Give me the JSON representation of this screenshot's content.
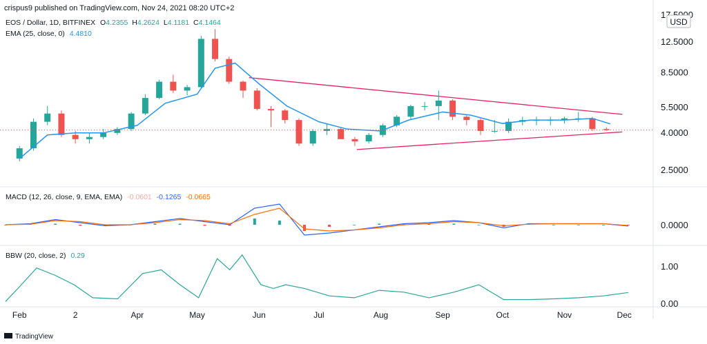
{
  "header": {
    "credit": "crispus9 published on TradingView.com, Nov 24, 2021 08:20 UTC+2",
    "symbol": "EOS / Dollar, 1D, BITFINEX",
    "o_label": "O",
    "o_value": "4.2355",
    "h_label": "H",
    "h_value": "4.2624",
    "l_label": "L",
    "l_value": "4.1181",
    "c_label": "C",
    "c_value": "4.1464",
    "ema_label": "EMA (25, close, 0)",
    "ema_value": "4.4810",
    "macd_label": "MACD (12, 26, close, 9, EMA, EMA)",
    "macd_hist_value": "-0.0601",
    "macd_value": "-0.1265",
    "macd_signal_value": "-0.0665",
    "bbw_label": "BBW (20, close, 2)",
    "bbw_value": "0.29",
    "currency": "USD",
    "brand": "TradingView"
  },
  "colors": {
    "up": "#26a69a",
    "down": "#ef5350",
    "ema": "#2196f3",
    "trendline": "#e91e63",
    "macd": "#2962ff",
    "signal": "#ff6d00",
    "bbw": "#26a69a",
    "hist_up": "#26a69a",
    "hist_down": "#ef5350"
  },
  "chart_data": [
    {
      "type": "candlestick",
      "title": "EOS / Dollar, 1D, BITFINEX",
      "scale": "log",
      "x_ticks": [
        "Feb",
        "2",
        "Apr",
        "May",
        "Jun",
        "Jul",
        "Aug",
        "Sep",
        "Oct",
        "Nov",
        "Dec"
      ],
      "y_ticks": [
        "2.5000",
        "4.0000",
        "5.5000",
        "8.5000",
        "12.5000",
        "17.5000"
      ],
      "last_price": 4.1464,
      "series": [
        {
          "name": "EOS / Dollar",
          "x": [
            "2021-02-01",
            "2021-02-08",
            "2021-02-15",
            "2021-02-22",
            "2021-03-01",
            "2021-03-08",
            "2021-03-15",
            "2021-03-22",
            "2021-03-29",
            "2021-04-05",
            "2021-04-12",
            "2021-04-19",
            "2021-04-26",
            "2021-05-03",
            "2021-05-10",
            "2021-05-17",
            "2021-05-24",
            "2021-05-31",
            "2021-06-07",
            "2021-06-14",
            "2021-06-21",
            "2021-06-28",
            "2021-07-05",
            "2021-07-12",
            "2021-07-19",
            "2021-07-26",
            "2021-08-02",
            "2021-08-09",
            "2021-08-16",
            "2021-08-23",
            "2021-08-30",
            "2021-09-06",
            "2021-09-13",
            "2021-09-20",
            "2021-09-27",
            "2021-10-04",
            "2021-10-11",
            "2021-10-18",
            "2021-10-25",
            "2021-11-01",
            "2021-11-08",
            "2021-11-15",
            "2021-11-22"
          ],
          "open": [
            2.9,
            3.3,
            4.6,
            5.1,
            3.9,
            3.7,
            3.8,
            4.0,
            4.2,
            5.1,
            6.2,
            7.6,
            6.8,
            7.1,
            13.0,
            10.1,
            7.6,
            6.8,
            5.4,
            5.3,
            4.7,
            3.5,
            4.1,
            4.2,
            3.7,
            3.6,
            3.9,
            4.4,
            4.9,
            5.6,
            5.6,
            6.0,
            4.9,
            4.7,
            4.1,
            4.1,
            4.6,
            4.7,
            4.7,
            4.7,
            4.8,
            4.8,
            4.2
          ],
          "high": [
            3.4,
            4.8,
            5.6,
            5.3,
            4.1,
            4.0,
            4.2,
            4.3,
            5.2,
            6.5,
            7.8,
            8.3,
            7.3,
            13.5,
            14.7,
            10.4,
            7.7,
            7.0,
            5.6,
            5.4,
            4.8,
            4.2,
            4.5,
            4.3,
            3.8,
            4.0,
            4.5,
            5.0,
            5.7,
            5.9,
            6.8,
            6.1,
            5.0,
            4.8,
            4.7,
            4.8,
            4.9,
            4.9,
            4.9,
            4.9,
            5.2,
            4.9,
            4.3
          ],
          "low": [
            2.8,
            3.2,
            4.4,
            3.8,
            3.5,
            3.5,
            3.7,
            3.9,
            4.1,
            5.0,
            6.1,
            6.6,
            6.4,
            7.0,
            9.8,
            7.4,
            6.2,
            5.3,
            4.3,
            4.5,
            3.4,
            3.4,
            3.9,
            3.8,
            3.4,
            3.5,
            3.8,
            4.3,
            4.7,
            5.3,
            4.7,
            4.7,
            4.4,
            3.9,
            4.0,
            4.0,
            4.4,
            4.4,
            4.4,
            4.5,
            4.6,
            4.1,
            4.1
          ],
          "close": [
            3.3,
            4.6,
            5.1,
            3.9,
            3.7,
            3.8,
            4.0,
            4.2,
            5.1,
            6.2,
            7.6,
            6.8,
            7.1,
            13.0,
            10.1,
            7.6,
            6.8,
            5.4,
            5.3,
            4.7,
            3.5,
            4.1,
            4.2,
            3.7,
            3.6,
            3.9,
            4.4,
            4.9,
            5.6,
            5.6,
            6.0,
            4.9,
            4.7,
            4.1,
            4.1,
            4.6,
            4.7,
            4.7,
            4.7,
            4.8,
            4.8,
            4.2,
            4.15
          ]
        },
        {
          "name": "EMA (25, close, 0)",
          "x": [
            "2021-02-01",
            "2021-02-15",
            "2021-03-01",
            "2021-03-15",
            "2021-04-01",
            "2021-04-15",
            "2021-05-01",
            "2021-05-10",
            "2021-05-20",
            "2021-06-01",
            "2021-06-15",
            "2021-07-01",
            "2021-07-15",
            "2021-08-01",
            "2021-08-15",
            "2021-09-01",
            "2021-09-15",
            "2021-10-01",
            "2021-10-15",
            "2021-11-01",
            "2021-11-15",
            "2021-11-24"
          ],
          "values": [
            2.9,
            3.9,
            4.0,
            4.0,
            4.4,
            5.8,
            6.5,
            9.0,
            9.6,
            7.4,
            5.6,
            4.6,
            4.2,
            4.1,
            4.7,
            5.2,
            5.0,
            4.5,
            4.7,
            4.7,
            4.8,
            4.48
          ]
        }
      ],
      "annotations": [
        {
          "type": "trendline",
          "from": {
            "x": "2021-05-27",
            "y": 8.0
          },
          "to": {
            "x": "2021-11-30",
            "y": 5.05
          }
        },
        {
          "type": "trendline",
          "from": {
            "x": "2021-07-20",
            "y": 3.25
          },
          "to": {
            "x": "2021-11-30",
            "y": 4.05
          }
        },
        {
          "type": "hline",
          "y": 4.1464,
          "style": "dotted"
        }
      ]
    },
    {
      "type": "macd",
      "title": "MACD (12, 26, close, 9, EMA, EMA)",
      "y_ticks": [
        "0.0000"
      ],
      "series": [
        {
          "name": "MACD",
          "x": [
            0,
            4,
            8,
            12,
            16,
            20,
            24,
            28,
            32,
            36,
            40,
            44,
            48,
            52,
            56,
            60,
            64,
            68,
            72,
            76,
            80,
            84,
            88,
            92,
            96,
            100
          ],
          "values": [
            0,
            0.1,
            0.5,
            0.2,
            -0.1,
            0,
            0.3,
            0.6,
            0.3,
            0,
            1.6,
            2.0,
            -1.0,
            -0.8,
            -0.5,
            -0.2,
            0.1,
            0.2,
            0.4,
            0.2,
            -0.3,
            0.1,
            0.1,
            0.1,
            0.1,
            -0.13
          ]
        },
        {
          "name": "Signal",
          "x": [
            0,
            4,
            8,
            12,
            16,
            20,
            24,
            28,
            32,
            36,
            40,
            44,
            48,
            52,
            56,
            60,
            64,
            68,
            72,
            76,
            80,
            84,
            88,
            92,
            96,
            100
          ],
          "values": [
            0,
            0.05,
            0.4,
            0.3,
            0,
            0,
            0.2,
            0.5,
            0.4,
            0.1,
            1.0,
            1.6,
            -0.4,
            -0.6,
            -0.5,
            -0.3,
            0,
            0.1,
            0.3,
            0.2,
            -0.1,
            0.05,
            0.1,
            0.1,
            0.1,
            -0.07
          ]
        }
      ]
    },
    {
      "type": "line",
      "title": "BBW (20, close, 2)",
      "y_ticks": [
        "0.00",
        "1.00"
      ],
      "series": [
        {
          "name": "BBW",
          "x": [
            0,
            2,
            5,
            8,
            11,
            14,
            18,
            22,
            25,
            28,
            31,
            34,
            36,
            38,
            41,
            43,
            45,
            48,
            52,
            56,
            60,
            64,
            68,
            72,
            76,
            80,
            84,
            88,
            92,
            96,
            100
          ],
          "values": [
            0.05,
            0.4,
            0.95,
            0.75,
            0.5,
            0.15,
            0.12,
            0.8,
            0.9,
            0.5,
            0.15,
            1.2,
            0.9,
            1.3,
            0.5,
            0.4,
            0.5,
            0.4,
            0.2,
            0.15,
            0.35,
            0.3,
            0.15,
            0.3,
            0.5,
            0.1,
            0.1,
            0.12,
            0.15,
            0.2,
            0.29
          ]
        }
      ]
    }
  ]
}
